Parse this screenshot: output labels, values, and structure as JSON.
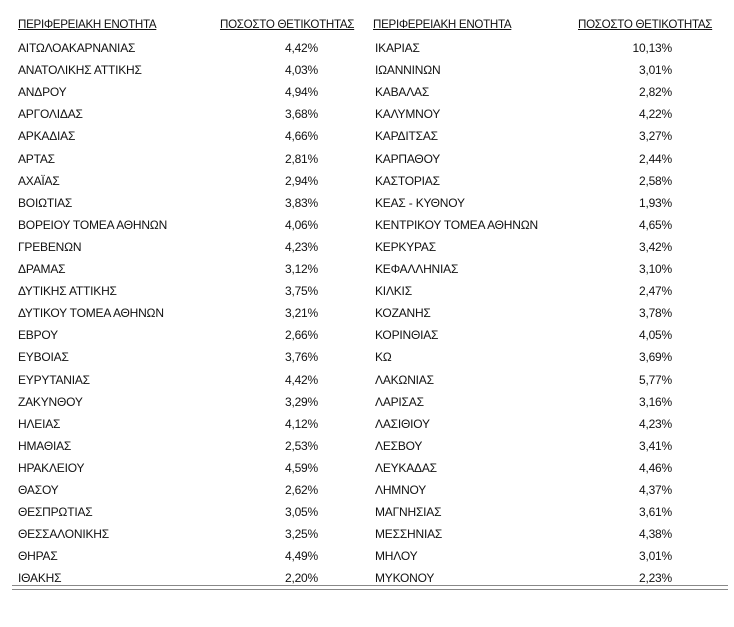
{
  "table": {
    "header": [
      "ΠΕΡΙΦΕΡΕΙΑΚΗ ΕΝΟΤΗΤΑ",
      "ΠΟΣΟΣΤΟ ΘΕΤΙΚΟΤΗΤΑΣ",
      "ΠΕΡΙΦΕΡΕΙΑΚΗ ΕΝΟΤΗΤΑ",
      "ΠΟΣΟΣΤΟ ΘΕΤΙΚΟΤΗΤΑΣ"
    ],
    "rows": [
      [
        "ΑΙΤΩΛΟΑΚΑΡΝΑΝΙΑΣ",
        "4,42%",
        "ΙΚΑΡΙΑΣ",
        "10,13%"
      ],
      [
        "ΑΝΑΤΟΛΙΚΗΣ ΑΤΤΙΚΗΣ",
        "4,03%",
        "ΙΩΑΝΝΙΝΩΝ",
        "3,01%"
      ],
      [
        "ΑΝΔΡΟΥ",
        "4,94%",
        "ΚΑΒΑΛΑΣ",
        "2,82%"
      ],
      [
        "ΑΡΓΟΛΙΔΑΣ",
        "3,68%",
        "ΚΑΛΥΜΝΟΥ",
        "4,22%"
      ],
      [
        "ΑΡΚΑΔΙΑΣ",
        "4,66%",
        "ΚΑΡΔΙΤΣΑΣ",
        "3,27%"
      ],
      [
        "ΑΡΤΑΣ",
        "2,81%",
        "ΚΑΡΠΑΘΟΥ",
        "2,44%"
      ],
      [
        "ΑΧΑΪΑΣ",
        "2,94%",
        "ΚΑΣΤΟΡΙΑΣ",
        "2,58%"
      ],
      [
        "ΒΟΙΩΤΙΑΣ",
        "3,83%",
        "ΚΕΑΣ - ΚΥΘΝΟΥ",
        "1,93%"
      ],
      [
        "ΒΟΡΕΙΟΥ ΤΟΜΕΑ ΑΘΗΝΩΝ",
        "4,06%",
        "ΚΕΝΤΡΙΚΟΥ ΤΟΜΕΑ ΑΘΗΝΩΝ",
        "4,65%"
      ],
      [
        "ΓΡΕΒΕΝΩΝ",
        "4,23%",
        "ΚΕΡΚΥΡΑΣ",
        "3,42%"
      ],
      [
        "ΔΡΑΜΑΣ",
        "3,12%",
        "ΚΕΦΑΛΛΗΝΙΑΣ",
        "3,10%"
      ],
      [
        "ΔΥΤΙΚΗΣ ΑΤΤΙΚΗΣ",
        "3,75%",
        "ΚΙΛΚΙΣ",
        "2,47%"
      ],
      [
        "ΔΥΤΙΚΟΥ ΤΟΜΕΑ ΑΘΗΝΩΝ",
        "3,21%",
        "ΚΟΖΑΝΗΣ",
        "3,78%"
      ],
      [
        "ΕΒΡΟΥ",
        "2,66%",
        "ΚΟΡΙΝΘΙΑΣ",
        "4,05%"
      ],
      [
        "ΕΥΒΟΙΑΣ",
        "3,76%",
        "ΚΩ",
        "3,69%"
      ],
      [
        "ΕΥΡΥΤΑΝΙΑΣ",
        "4,42%",
        "ΛΑΚΩΝΙΑΣ",
        "5,77%"
      ],
      [
        "ΖΑΚΥΝΘΟΥ",
        "3,29%",
        "ΛΑΡΙΣΑΣ",
        "3,16%"
      ],
      [
        "ΗΛΕΙΑΣ",
        "4,12%",
        "ΛΑΣΙΘΙΟΥ",
        "4,23%"
      ],
      [
        "ΗΜΑΘΙΑΣ",
        "2,53%",
        "ΛΕΣΒΟΥ",
        "3,41%"
      ],
      [
        "ΗΡΑΚΛΕΙΟΥ",
        "4,59%",
        "ΛΕΥΚΑΔΑΣ",
        "4,46%"
      ],
      [
        "ΘΑΣΟΥ",
        "2,62%",
        "ΛΗΜΝΟΥ",
        "4,37%"
      ],
      [
        "ΘΕΣΠΡΩΤΙΑΣ",
        "3,05%",
        "ΜΑΓΝΗΣΙΑΣ",
        "3,61%"
      ],
      [
        "ΘΕΣΣΑΛΟΝΙΚΗΣ",
        "3,25%",
        "ΜΕΣΣΗΝΙΑΣ",
        "4,38%"
      ],
      [
        "ΘΗΡΑΣ",
        "4,49%",
        "ΜΗΛΟΥ",
        "3,01%"
      ],
      [
        "ΙΘΑΚΗΣ",
        "2,20%",
        "ΜΥΚΟΝΟΥ",
        "2,23%"
      ]
    ]
  }
}
